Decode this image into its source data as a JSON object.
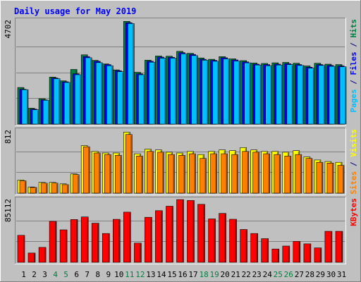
{
  "chart_data": {
    "type": "bar",
    "title": "Daily usage for May 2019",
    "days": [
      "1",
      "2",
      "3",
      "4",
      "5",
      "6",
      "7",
      "8",
      "9",
      "10",
      "11",
      "12",
      "13",
      "14",
      "15",
      "16",
      "17",
      "18",
      "19",
      "20",
      "21",
      "22",
      "23",
      "24",
      "25",
      "26",
      "27",
      "28",
      "29",
      "30",
      "31"
    ],
    "weekend_days": [
      "4",
      "5",
      "11",
      "12",
      "18",
      "19",
      "25",
      "26"
    ],
    "panels": [
      {
        "id": "hits-files-pages",
        "ymax_label": "4702",
        "ymax": 4702,
        "axis_label_parts": [
          {
            "text": "Pages",
            "color": "#00c0ff"
          },
          {
            "text": " / ",
            "color": "#000080"
          },
          {
            "text": "Files",
            "color": "#0000ff"
          },
          {
            "text": " / ",
            "color": "#000080"
          },
          {
            "text": "Hits",
            "color": "#008040"
          }
        ],
        "series": [
          {
            "name": "Hits",
            "color": "#008040",
            "values": [
              1660,
              720,
              1150,
              2130,
              1960,
              2480,
              3140,
              2890,
              2730,
              2460,
              4660,
              2350,
              2900,
              3090,
              3080,
              3300,
              3210,
              3000,
              2940,
              3060,
              2960,
              2880,
              2770,
              2750,
              2780,
              2800,
              2760,
              2640,
              2760,
              2720,
              2700
            ]
          },
          {
            "name": "Files",
            "color": "#0000ff",
            "values": [
              1580,
              680,
              1100,
              2090,
              1920,
              2280,
              3060,
              2850,
              2700,
              2420,
              4600,
              2280,
              2850,
              3040,
              3030,
              3240,
              3160,
              2940,
              2890,
              3010,
              2910,
              2820,
              2720,
              2700,
              2720,
              2740,
              2700,
              2580,
              2700,
              2660,
              2640
            ]
          },
          {
            "name": "Pages",
            "color": "#00c0ff",
            "values": [
              1560,
              650,
              1080,
              2060,
              1890,
              2240,
              3010,
              2790,
              2650,
              2380,
              4560,
              2240,
              2810,
              2990,
              2990,
              3190,
              3110,
              2900,
              2850,
              2960,
              2860,
              2780,
              2680,
              2650,
              2680,
              2700,
              2660,
              2540,
              2660,
              2620,
              2600
            ]
          }
        ]
      },
      {
        "id": "visits-sites",
        "ymax_label": "812",
        "ymax": 812,
        "axis_label_parts": [
          {
            "text": "Sites",
            "color": "#ff8000"
          },
          {
            "text": " / ",
            "color": "#000080"
          },
          {
            "text": "Visits",
            "color": "#ffff00"
          }
        ],
        "series": [
          {
            "name": "Visits",
            "color": "#ffff00",
            "values": [
              170,
              80,
              140,
              140,
              120,
              250,
              615,
              540,
              520,
              520,
              790,
              510,
              570,
              560,
              530,
              520,
              540,
              500,
              540,
              560,
              550,
              590,
              560,
              540,
              540,
              530,
              550,
              470,
              430,
              410,
              400
            ]
          },
          {
            "name": "Sites",
            "color": "#ff8000",
            "values": [
              160,
              75,
              130,
              130,
              110,
              240,
              600,
              520,
              500,
              490,
              760,
              480,
              540,
              530,
              500,
              490,
              510,
              450,
              510,
              510,
              500,
              540,
              530,
              510,
              500,
              480,
              500,
              450,
              400,
              390,
              360
            ]
          }
        ]
      },
      {
        "id": "kbytes",
        "ymax_label": "85112",
        "ymax": 85112,
        "axis_label_parts": [
          {
            "text": "KBytes",
            "color": "#ff0000"
          }
        ],
        "series": [
          {
            "name": "KBytes",
            "color": "#ff0000",
            "values": [
              36500,
              12500,
              20200,
              55500,
              44000,
              58000,
              61500,
              53000,
              39000,
              58200,
              68000,
              26000,
              61000,
              70000,
              76000,
              85000,
              83800,
              78600,
              58800,
              66300,
              58300,
              44500,
              39000,
              32000,
              18000,
              22000,
              28300,
              25000,
              19500,
              42000,
              42000
            ]
          }
        ]
      }
    ]
  }
}
